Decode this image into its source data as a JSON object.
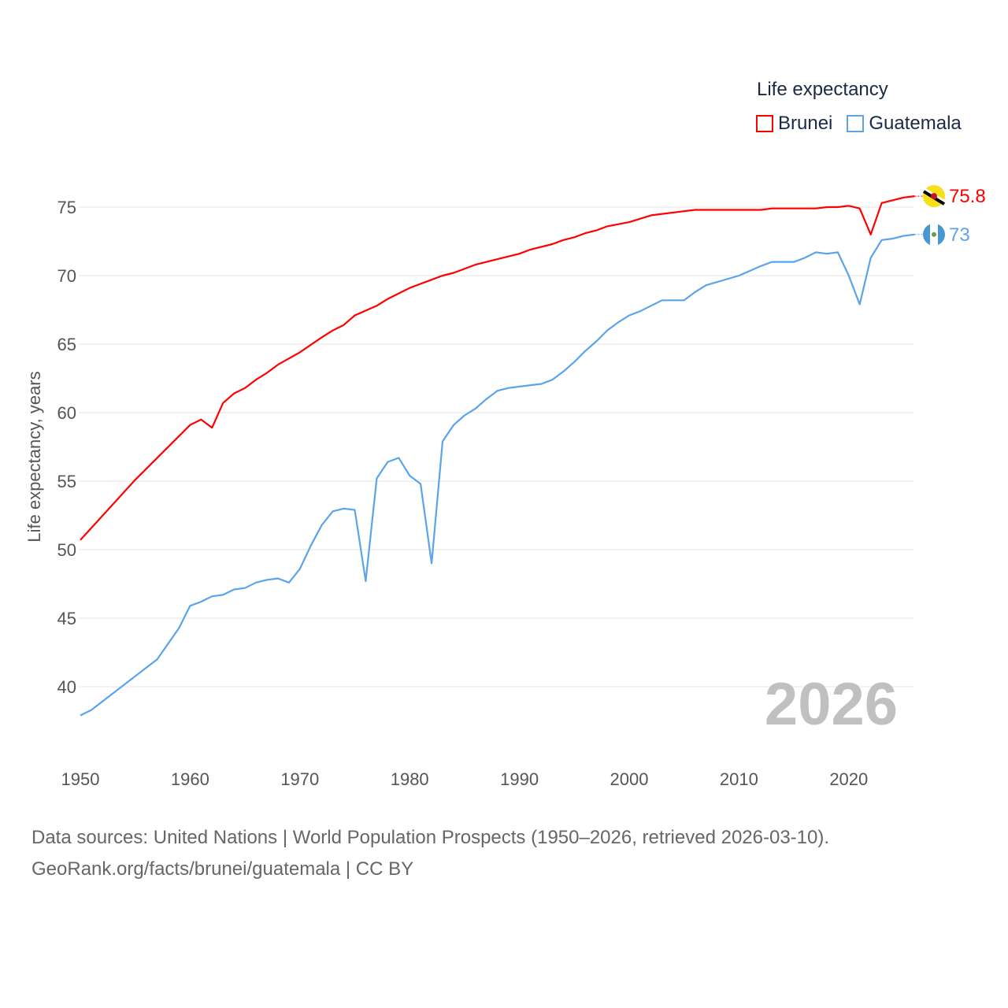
{
  "chart_data": {
    "type": "line",
    "title": "",
    "xlabel": "",
    "ylabel": "Life expectancy, years",
    "legend_title": "Life expectancy",
    "legend_position": "top-right",
    "year_label": "2026",
    "xlim": [
      1950,
      2026
    ],
    "ylim": [
      35,
      78
    ],
    "x_ticks": [
      "1950",
      "1960",
      "1970",
      "1980",
      "1990",
      "2000",
      "2010",
      "2020"
    ],
    "y_ticks": [
      "40",
      "45",
      "50",
      "55",
      "60",
      "65",
      "70",
      "75"
    ],
    "grid": true,
    "series": [
      {
        "name": "Brunei",
        "color": "#ff0000",
        "end_label": "75.8",
        "x": [
          1950,
          1955,
          1960,
          1961,
          1962,
          1963,
          1964,
          1965,
          1966,
          1967,
          1968,
          1970,
          1972,
          1973,
          1974,
          1975,
          1977,
          1978,
          1979,
          1980,
          1981,
          1982,
          1983,
          1984,
          1986,
          1988,
          1990,
          1991,
          1993,
          1994,
          1995,
          1996,
          1997,
          1998,
          2000,
          2002,
          2005,
          2006,
          2012,
          2013,
          2017,
          2018,
          2019,
          2020,
          2021,
          2022,
          2023,
          2024,
          2025,
          2026
        ],
        "y": [
          50.7,
          55.1,
          59.1,
          59.5,
          58.9,
          60.7,
          61.4,
          61.8,
          62.4,
          62.9,
          63.5,
          64.4,
          65.5,
          66.0,
          66.4,
          67.1,
          67.8,
          68.3,
          68.7,
          69.1,
          69.4,
          69.7,
          70.0,
          70.2,
          70.8,
          71.2,
          71.6,
          71.9,
          72.3,
          72.6,
          72.8,
          73.1,
          73.3,
          73.6,
          73.9,
          74.4,
          74.7,
          74.8,
          74.8,
          74.9,
          74.9,
          75.0,
          75.0,
          75.1,
          74.9,
          73.0,
          75.3,
          75.5,
          75.7,
          75.8
        ]
      },
      {
        "name": "Guatemala",
        "color": "#5ba4ea",
        "end_label": "73",
        "x": [
          1950,
          1951,
          1957,
          1959,
          1960,
          1961,
          1962,
          1963,
          1964,
          1965,
          1966,
          1967,
          1968,
          1969,
          1970,
          1971,
          1972,
          1973,
          1974,
          1975,
          1976,
          1977,
          1978,
          1979,
          1980,
          1981,
          1982,
          1983,
          1984,
          1985,
          1986,
          1987,
          1988,
          1989,
          1990,
          1992,
          1993,
          1994,
          1995,
          1996,
          1997,
          1998,
          1999,
          2000,
          2001,
          2003,
          2005,
          2006,
          2007,
          2010,
          2012,
          2013,
          2015,
          2016,
          2017,
          2018,
          2019,
          2020,
          2021,
          2022,
          2023,
          2024,
          2025,
          2026
        ],
        "y": [
          37.9,
          38.3,
          42.0,
          44.3,
          45.9,
          46.2,
          46.6,
          46.7,
          47.1,
          47.2,
          47.6,
          47.8,
          47.9,
          47.6,
          48.6,
          50.3,
          51.8,
          52.8,
          53.0,
          52.9,
          47.7,
          55.2,
          56.4,
          56.7,
          55.4,
          54.8,
          49.0,
          57.9,
          59.1,
          59.8,
          60.3,
          61.0,
          61.6,
          61.8,
          61.9,
          62.1,
          62.4,
          63.0,
          63.7,
          64.5,
          65.2,
          66.0,
          66.6,
          67.1,
          67.4,
          68.2,
          68.2,
          68.8,
          69.3,
          70.0,
          70.7,
          71.0,
          71.0,
          71.3,
          71.7,
          71.6,
          71.7,
          70.0,
          67.9,
          71.3,
          72.6,
          72.7,
          72.9,
          73.0
        ]
      }
    ]
  },
  "source": {
    "line1": "Data sources: United Nations | World Population Prospects (1950–2026, retrieved 2026-03-10).",
    "line2": "GeoRank.org/facts/brunei/guatemala | CC BY"
  }
}
